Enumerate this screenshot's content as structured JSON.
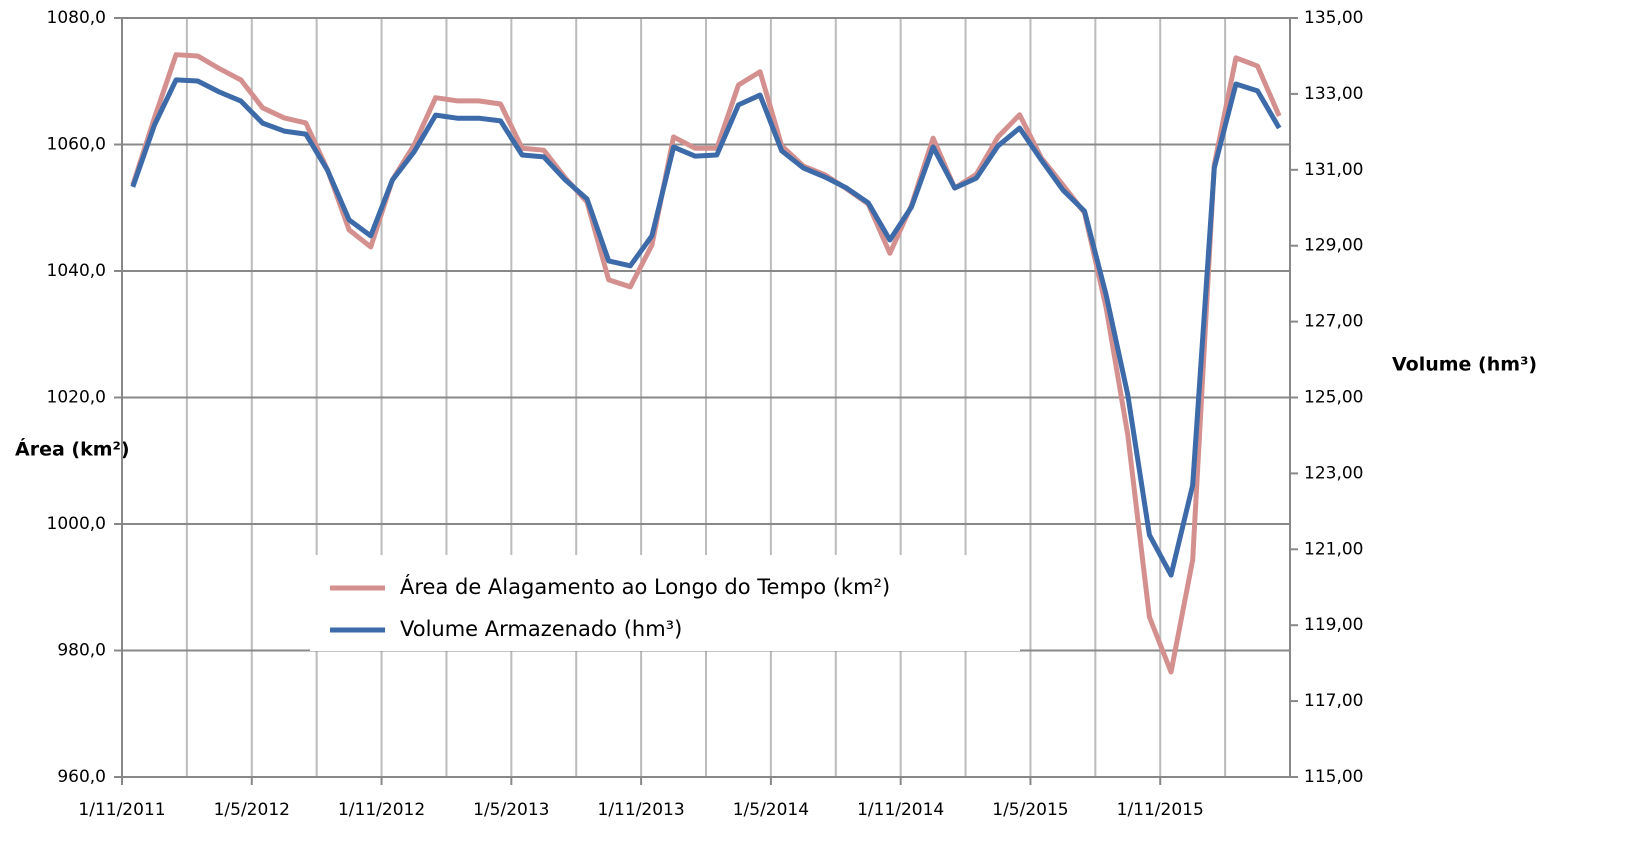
{
  "chart_data": {
    "type": "line",
    "categories": [
      "1/11/2011",
      null,
      null,
      null,
      null,
      null,
      "1/5/2012",
      null,
      null,
      null,
      null,
      null,
      "1/11/2012",
      null,
      null,
      null,
      null,
      null,
      "1/5/2013",
      null,
      null,
      null,
      null,
      null,
      "1/11/2013",
      null,
      null,
      null,
      null,
      null,
      "1/5/2014",
      null,
      null,
      null,
      null,
      null,
      "1/11/2014",
      null,
      null,
      null,
      null,
      null,
      "1/5/2015",
      null,
      null,
      null,
      null,
      null,
      "1/11/2015",
      null,
      null,
      null,
      null,
      null
    ],
    "y_label": "Área (km²)",
    "y2_label": "Volume (hm³)",
    "ylim": [
      960,
      1080
    ],
    "yticks": [
      {
        "value": 960,
        "label": "960,0"
      },
      {
        "value": 980,
        "label": "980,0"
      },
      {
        "value": 1000,
        "label": "1000,0"
      },
      {
        "value": 1020,
        "label": "1020,0"
      },
      {
        "value": 1040,
        "label": "1040,0"
      },
      {
        "value": 1060,
        "label": "1060,0"
      },
      {
        "value": 1080,
        "label": "1080,0"
      }
    ],
    "y2lim": [
      115,
      135
    ],
    "y2ticks": [
      {
        "value": 115,
        "label": "115,00"
      },
      {
        "value": 117,
        "label": "117,00"
      },
      {
        "value": 119,
        "label": "119,00"
      },
      {
        "value": 121,
        "label": "121,00"
      },
      {
        "value": 123,
        "label": "123,00"
      },
      {
        "value": 125,
        "label": "125,00"
      },
      {
        "value": 127,
        "label": "127,00"
      },
      {
        "value": 129,
        "label": "129,00"
      },
      {
        "value": 131,
        "label": "131,00"
      },
      {
        "value": 133,
        "label": "133,00"
      },
      {
        "value": 135,
        "label": "135,00"
      }
    ],
    "grid": true,
    "series": [
      {
        "name": "Área de Alagamento ao Longo do Tempo (km²)",
        "color": "#d4908f",
        "values": [
          1053.6,
          1064.2,
          1074.2,
          1074,
          1072,
          1070.2,
          1065.8,
          1064.2,
          1063.4,
          1056,
          1046.5,
          1043.8,
          1054.4,
          1059.9,
          1067.4,
          1066.9,
          1066.9,
          1066.4,
          1059.4,
          1059.1,
          1054.7,
          1050.9,
          1038.6,
          1037.5,
          1044.1,
          1061.2,
          1059.4,
          1059.4,
          1069.4,
          1071.5,
          1059.8,
          1056.6,
          1055.2,
          1053,
          1050.6,
          1042.8,
          1050.4,
          1061,
          1053.1,
          1055.3,
          1061.2,
          1064.7,
          1057.9,
          1053.6,
          1049.2,
          1034.2,
          1014.1,
          985.3,
          976.6,
          994.3,
          1056.8,
          1073.7,
          1072.4,
          1064.5
        ]
      },
      {
        "name": "Volume Armazenado (hm³)",
        "color": "#3d6aa8",
        "axis": "y2",
        "values": [
          130.55,
          132.18,
          133.37,
          133.34,
          133.05,
          132.81,
          132.23,
          132.02,
          131.94,
          130.99,
          129.68,
          129.26,
          130.73,
          131.47,
          132.44,
          132.36,
          132.36,
          132.29,
          131.39,
          131.34,
          130.73,
          130.23,
          128.6,
          128.47,
          129.26,
          131.6,
          131.36,
          131.39,
          132.71,
          132.97,
          131.5,
          131.05,
          130.81,
          130.52,
          130.13,
          129.15,
          130.02,
          131.6,
          130.52,
          130.78,
          131.63,
          132.1,
          131.26,
          130.47,
          129.91,
          127.7,
          125.07,
          121.38,
          120.32,
          122.69,
          131.05,
          133.26,
          133.08,
          132.1
        ]
      }
    ]
  }
}
